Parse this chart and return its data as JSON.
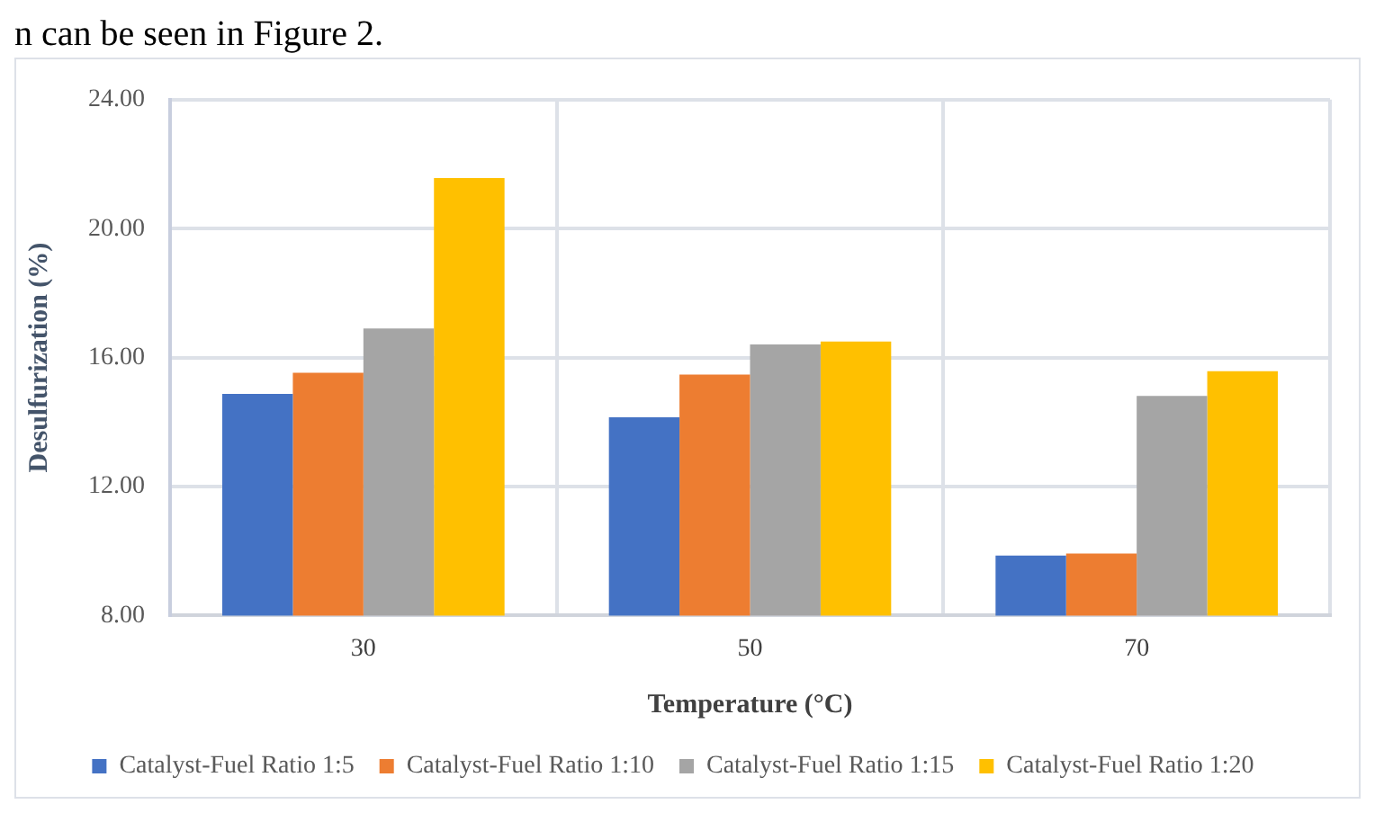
{
  "chart_data": {
    "type": "bar",
    "xlabel": "Temperature (°C)",
    "ylabel": "Desulfurization (%)",
    "annotations": [
      "n can be seen in Figure 2."
    ],
    "categories": [
      "30",
      "50",
      "70"
    ],
    "series": [
      {
        "name": "Catalyst-Fuel Ratio 1:5",
        "color": "#4472c4",
        "values": [
          14.87,
          14.15,
          9.86
        ]
      },
      {
        "name": "Catalyst-Fuel Ratio 1:10",
        "color": "#ed7d31",
        "values": [
          15.53,
          15.47,
          9.92
        ]
      },
      {
        "name": "Catalyst-Fuel Ratio 1:15",
        "color": "#a5a5a5",
        "values": [
          16.9,
          16.41,
          14.81
        ]
      },
      {
        "name": "Catalyst-Fuel Ratio 1:20",
        "color": "#ffc000",
        "values": [
          21.57,
          16.5,
          15.58
        ]
      }
    ],
    "ylim": [
      8,
      24
    ],
    "yticks": [
      {
        "value": 8,
        "label": "8.00"
      },
      {
        "value": 12,
        "label": "12.00"
      },
      {
        "value": 16,
        "label": "16.00"
      },
      {
        "value": 20,
        "label": "20.00"
      },
      {
        "value": 24,
        "label": "24.00"
      }
    ],
    "grid": true,
    "legend": "bottom"
  }
}
